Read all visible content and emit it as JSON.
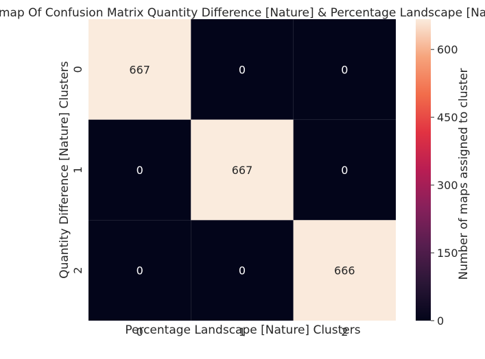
{
  "chart_data": {
    "type": "heatmap",
    "title": "Heatmap Of Confusion Matrix Quantity Difference [Nature] & Percentage Landscape [Nature]",
    "xlabel": "Percentage Landscape [Nature] Clusters",
    "ylabel": "Quantity Difference [Nature] Clusters",
    "x_categories": [
      "0",
      "1",
      "2"
    ],
    "y_categories": [
      "0",
      "1",
      "2"
    ],
    "values": [
      [
        667,
        0,
        0
      ],
      [
        0,
        667,
        0
      ],
      [
        0,
        0,
        666
      ]
    ],
    "colorbar": {
      "label": "Number of maps assigned to cluster",
      "ticks": [
        0,
        150,
        300,
        450,
        600
      ],
      "range": [
        0,
        667
      ],
      "colormap": "rocket"
    },
    "annotations_shown": true
  }
}
